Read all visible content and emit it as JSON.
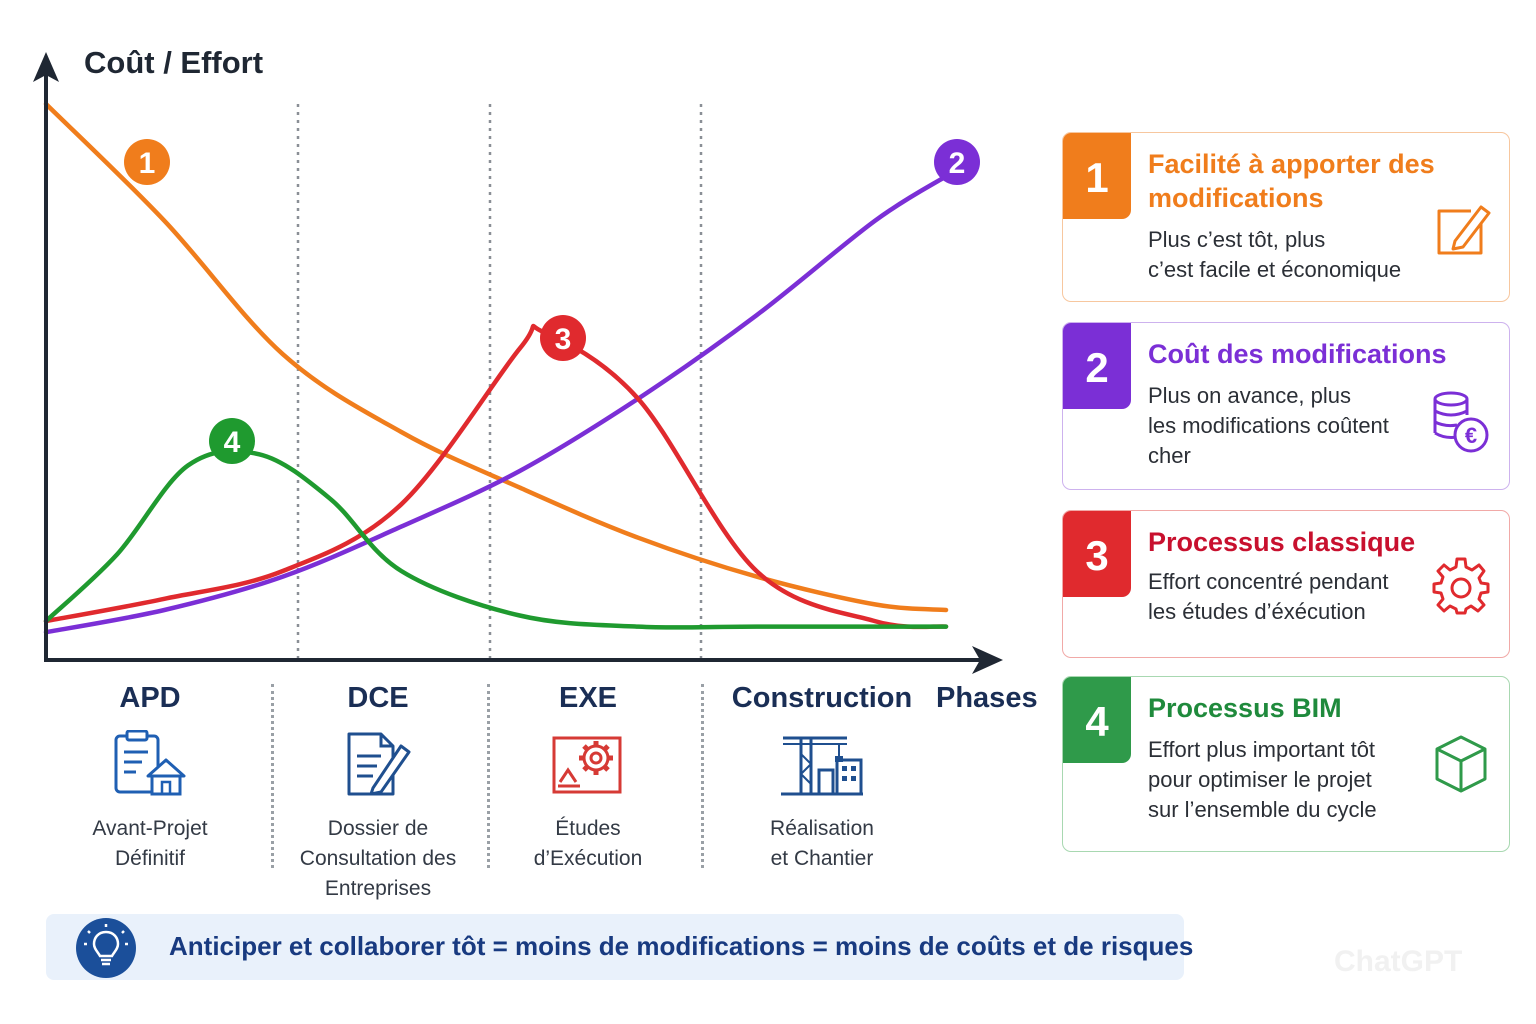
{
  "chart_data": {
    "type": "line",
    "ylabel": "Coût / Effort",
    "xlabel": "Phases",
    "categories": [
      "APD",
      "DCE",
      "EXE",
      "Construction"
    ],
    "xlim": [
      0,
      4
    ],
    "ylim": [
      0,
      10
    ],
    "grid": false,
    "series": [
      {
        "marker": "1",
        "color": "#f07d1c",
        "x": [
          0,
          0.5,
          1,
          1.5,
          2,
          2.5,
          3,
          3.5,
          3.8
        ],
        "y": [
          10,
          7.9,
          5.5,
          4.1,
          3.1,
          2.2,
          1.5,
          1.0,
          0.9
        ]
      },
      {
        "marker": "2",
        "color": "#7b2fd6",
        "x": [
          0,
          0.5,
          1,
          1.5,
          2,
          2.5,
          3,
          3.5,
          3.8
        ],
        "y": [
          0.5,
          0.9,
          1.5,
          2.4,
          3.4,
          4.7,
          6.2,
          7.9,
          8.7
        ]
      },
      {
        "marker": "3",
        "color": "#e02a2e",
        "x": [
          0,
          0.5,
          1,
          1.5,
          2,
          2.1,
          2.5,
          3,
          3.5,
          3.8
        ],
        "y": [
          0.7,
          1.1,
          1.6,
          2.8,
          5.6,
          5.9,
          4.7,
          1.6,
          0.7,
          0.6
        ]
      },
      {
        "marker": "4",
        "color": "#1f9a2f",
        "x": [
          0,
          0.3,
          0.6,
          0.9,
          1.2,
          1.5,
          2,
          2.5,
          3,
          3.8
        ],
        "y": [
          0.7,
          1.9,
          3.5,
          3.7,
          2.9,
          1.6,
          0.8,
          0.6,
          0.6,
          0.6
        ]
      }
    ]
  },
  "y_axis_title": "Coût / Effort",
  "x_axis_title": "Phases",
  "phases": [
    {
      "code": "APD",
      "desc": "Avant-Projet\nDéfinitif",
      "icon": "clipboard-house-icon"
    },
    {
      "code": "DCE",
      "desc": "Dossier de\nConsultation des\nEntreprises",
      "icon": "document-pen-icon"
    },
    {
      "code": "EXE",
      "desc": "Études\nd’Exécution",
      "icon": "blueprint-gear-icon"
    },
    {
      "code": "Construction",
      "desc": "Réalisation\net Chantier",
      "icon": "crane-building-icon"
    }
  ],
  "cards": [
    {
      "num": "1",
      "color": "#f07d1c",
      "title": "Facilité à apporter des modifications",
      "text": "Plus c’est tôt, plus\nc’est facile et économique",
      "icon": "edit-pencil-icon"
    },
    {
      "num": "2",
      "color": "#7b2fd6",
      "title": "Coût des modifications",
      "text": "Plus on avance, plus\nles modifications coûtent\ncher",
      "icon": "coins-euro-icon"
    },
    {
      "num": "3",
      "color": "#e02a2e",
      "title": "Processus classique",
      "text": "Effort concentré pendant\nles études d’éxécution",
      "icon": "gear-icon"
    },
    {
      "num": "4",
      "color": "#1f9a2f",
      "title": "Processus BIM",
      "text": "Effort plus important tôt\npour optimiser le projet\nsur l’ensemble du cycle",
      "icon": "cube-icon"
    }
  ],
  "banner": {
    "text": "Anticiper et collaborer tôt = moins de modifications = moins de coûts et de risques",
    "icon": "lightbulb-icon"
  },
  "watermark": "ChatGPT"
}
